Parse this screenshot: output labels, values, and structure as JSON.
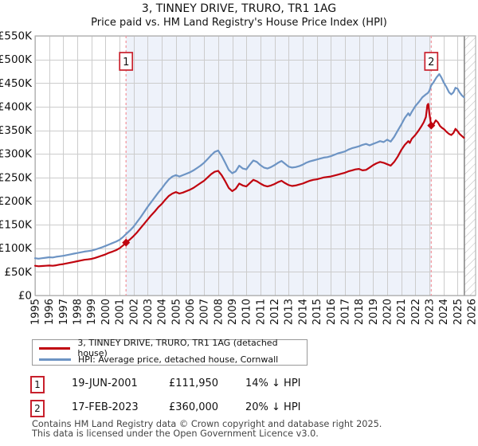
{
  "title": "3, TINNEY DRIVE, TRURO, TR1 1AG",
  "subtitle": "Price paid vs. HM Land Registry's House Price Index (HPI)",
  "colors": {
    "property_line": "#c0040f",
    "hpi_line": "#6d94c4",
    "shading": "#eef2fa",
    "dashed_marker": "#f29aa2",
    "marker_box_border": "#c8202c",
    "marker_point": "#c0040f",
    "grid": "#cccccc",
    "plot_border": "#a6a6a6",
    "hatch_line": "#bfbfbf",
    "hatch_border": "#8a8a8a",
    "footer_text": "#454545"
  },
  "chart_data": {
    "type": "line",
    "title": "3, TINNEY DRIVE, TRURO, TR1 1AG",
    "subtitle": "Price paid vs. HM Land Registry's House Price Index (HPI)",
    "xlabel": "",
    "ylabel": "",
    "grid": true,
    "legend_position": "bottom",
    "values_unit": "GBP thousands",
    "xlim": [
      1995,
      2026.28
    ],
    "ylim": [
      0,
      550
    ],
    "x_ticks": [
      1995,
      1996,
      1997,
      1998,
      1999,
      2000,
      2001,
      2002,
      2003,
      2004,
      2005,
      2006,
      2007,
      2008,
      2009,
      2010,
      2011,
      2012,
      2013,
      2014,
      2015,
      2016,
      2017,
      2018,
      2019,
      2020,
      2021,
      2022,
      2023,
      2024,
      2025,
      2026
    ],
    "x_tick_labels": [
      "1995",
      "1996",
      "1997",
      "1998",
      "1999",
      "2000",
      "2001",
      "2002",
      "2003",
      "2004",
      "2005",
      "2006",
      "2007",
      "2008",
      "2009",
      "2010",
      "2011",
      "2012",
      "2013",
      "2014",
      "2015",
      "2016",
      "2017",
      "2018",
      "2019",
      "2020",
      "2021",
      "2022",
      "2023",
      "2024",
      "2025",
      "2026"
    ],
    "y_ticks": [
      0,
      50,
      100,
      150,
      200,
      250,
      300,
      350,
      400,
      450,
      500,
      550
    ],
    "y_tick_labels": [
      "£0",
      "£50K",
      "£100K",
      "£150K",
      "£200K",
      "£250K",
      "£300K",
      "£350K",
      "£400K",
      "£450K",
      "£500K",
      "£550K"
    ],
    "shaded_span": [
      2001.46,
      2023.13
    ],
    "hatch_span": [
      2025.48,
      2026.28
    ],
    "series": [
      {
        "name": "HPI: Average price, detached house, Cornwall",
        "color": "#6d94c4",
        "points": [
          [
            1995,
            79
          ],
          [
            1995.25,
            78
          ],
          [
            1995.5,
            79
          ],
          [
            1995.75,
            80
          ],
          [
            1996,
            81
          ],
          [
            1996.25,
            80.5
          ],
          [
            1996.5,
            82
          ],
          [
            1996.75,
            83
          ],
          [
            1997,
            84
          ],
          [
            1997.25,
            85.5
          ],
          [
            1997.5,
            87
          ],
          [
            1997.75,
            88.5
          ],
          [
            1998,
            90
          ],
          [
            1998.25,
            91.5
          ],
          [
            1998.5,
            93
          ],
          [
            1998.75,
            94
          ],
          [
            1999,
            95
          ],
          [
            1999.25,
            97
          ],
          [
            1999.5,
            99.5
          ],
          [
            1999.75,
            102
          ],
          [
            2000,
            105
          ],
          [
            2000.25,
            108
          ],
          [
            2000.5,
            111
          ],
          [
            2000.75,
            114
          ],
          [
            2001,
            118
          ],
          [
            2001.25,
            124
          ],
          [
            2001.46,
            130
          ],
          [
            2001.75,
            138
          ],
          [
            2002,
            146
          ],
          [
            2002.25,
            156
          ],
          [
            2002.5,
            166
          ],
          [
            2002.75,
            177
          ],
          [
            2003,
            188
          ],
          [
            2003.25,
            198
          ],
          [
            2003.5,
            208
          ],
          [
            2003.75,
            218
          ],
          [
            2004,
            227
          ],
          [
            2004.25,
            237
          ],
          [
            2004.5,
            246
          ],
          [
            2004.75,
            252
          ],
          [
            2005,
            255
          ],
          [
            2005.25,
            252
          ],
          [
            2005.5,
            255
          ],
          [
            2005.75,
            258
          ],
          [
            2006,
            261
          ],
          [
            2006.25,
            265
          ],
          [
            2006.5,
            270
          ],
          [
            2006.75,
            275
          ],
          [
            2007,
            281
          ],
          [
            2007.25,
            289
          ],
          [
            2007.5,
            297
          ],
          [
            2007.75,
            304
          ],
          [
            2008,
            307
          ],
          [
            2008.25,
            296
          ],
          [
            2008.5,
            281
          ],
          [
            2008.75,
            266
          ],
          [
            2009,
            259
          ],
          [
            2009.25,
            263
          ],
          [
            2009.5,
            275
          ],
          [
            2009.75,
            269
          ],
          [
            2010,
            267
          ],
          [
            2010.25,
            277
          ],
          [
            2010.5,
            286
          ],
          [
            2010.75,
            283
          ],
          [
            2011,
            276
          ],
          [
            2011.25,
            271
          ],
          [
            2011.5,
            269
          ],
          [
            2011.75,
            272
          ],
          [
            2012,
            276
          ],
          [
            2012.25,
            281
          ],
          [
            2012.5,
            285
          ],
          [
            2012.75,
            279
          ],
          [
            2013,
            273
          ],
          [
            2013.25,
            271
          ],
          [
            2013.5,
            272
          ],
          [
            2013.75,
            274
          ],
          [
            2014,
            277
          ],
          [
            2014.25,
            281
          ],
          [
            2014.5,
            284
          ],
          [
            2014.75,
            286
          ],
          [
            2015,
            288
          ],
          [
            2015.25,
            290
          ],
          [
            2015.5,
            292
          ],
          [
            2015.75,
            293
          ],
          [
            2016,
            295
          ],
          [
            2016.25,
            298
          ],
          [
            2016.5,
            301
          ],
          [
            2016.75,
            303
          ],
          [
            2017,
            305
          ],
          [
            2017.25,
            309
          ],
          [
            2017.5,
            312
          ],
          [
            2017.75,
            314
          ],
          [
            2018,
            316
          ],
          [
            2018.25,
            319
          ],
          [
            2018.5,
            321
          ],
          [
            2018.75,
            318
          ],
          [
            2019,
            321
          ],
          [
            2019.25,
            324
          ],
          [
            2019.5,
            327
          ],
          [
            2019.75,
            325
          ],
          [
            2020,
            330
          ],
          [
            2020.25,
            326
          ],
          [
            2020.5,
            336
          ],
          [
            2020.75,
            349
          ],
          [
            2021,
            362
          ],
          [
            2021.25,
            376
          ],
          [
            2021.5,
            386
          ],
          [
            2021.6,
            381
          ],
          [
            2021.75,
            389
          ],
          [
            2022,
            401
          ],
          [
            2022.25,
            410
          ],
          [
            2022.5,
            420
          ],
          [
            2022.75,
            426
          ],
          [
            2022.9,
            429
          ],
          [
            2023,
            434
          ],
          [
            2023.13,
            445
          ],
          [
            2023.3,
            452
          ],
          [
            2023.5,
            462
          ],
          [
            2023.7,
            469
          ],
          [
            2023.85,
            462
          ],
          [
            2024,
            452
          ],
          [
            2024.2,
            442
          ],
          [
            2024.4,
            430
          ],
          [
            2024.55,
            426
          ],
          [
            2024.7,
            430
          ],
          [
            2024.85,
            440
          ],
          [
            2025,
            438
          ],
          [
            2025.15,
            430
          ],
          [
            2025.3,
            424
          ],
          [
            2025.45,
            420
          ]
        ]
      },
      {
        "name": "3, TINNEY DRIVE, TRURO, TR1 1AG (detached house)",
        "color": "#c0040f",
        "points": [
          [
            1995,
            63
          ],
          [
            1995.25,
            62
          ],
          [
            1995.5,
            62.5
          ],
          [
            1995.75,
            63
          ],
          [
            1996,
            63.5
          ],
          [
            1996.25,
            63
          ],
          [
            1996.5,
            64
          ],
          [
            1996.75,
            65.5
          ],
          [
            1997,
            66.5
          ],
          [
            1997.25,
            68
          ],
          [
            1997.5,
            69.5
          ],
          [
            1997.75,
            71
          ],
          [
            1998,
            72.5
          ],
          [
            1998.25,
            74
          ],
          [
            1998.5,
            75.5
          ],
          [
            1998.75,
            76.5
          ],
          [
            1999,
            77.5
          ],
          [
            1999.25,
            79.5
          ],
          [
            1999.5,
            82
          ],
          [
            1999.75,
            84.5
          ],
          [
            2000,
            87
          ],
          [
            2000.25,
            90.5
          ],
          [
            2000.5,
            93
          ],
          [
            2000.75,
            96
          ],
          [
            2001,
            100
          ],
          [
            2001.25,
            106
          ],
          [
            2001.46,
            112
          ],
          [
            2001.75,
            119
          ],
          [
            2002,
            126
          ],
          [
            2002.25,
            134
          ],
          [
            2002.5,
            143
          ],
          [
            2002.75,
            152
          ],
          [
            2003,
            161
          ],
          [
            2003.25,
            170
          ],
          [
            2003.5,
            178
          ],
          [
            2003.75,
            187
          ],
          [
            2004,
            194
          ],
          [
            2004.25,
            203
          ],
          [
            2004.5,
            211
          ],
          [
            2004.75,
            216
          ],
          [
            2005,
            219
          ],
          [
            2005.25,
            216
          ],
          [
            2005.5,
            218
          ],
          [
            2005.75,
            221
          ],
          [
            2006,
            224
          ],
          [
            2006.25,
            228
          ],
          [
            2006.5,
            233
          ],
          [
            2006.75,
            238
          ],
          [
            2007,
            243
          ],
          [
            2007.25,
            250
          ],
          [
            2007.5,
            257
          ],
          [
            2007.75,
            262
          ],
          [
            2008,
            264
          ],
          [
            2008.25,
            255
          ],
          [
            2008.5,
            242
          ],
          [
            2008.75,
            228
          ],
          [
            2009,
            221
          ],
          [
            2009.25,
            226
          ],
          [
            2009.5,
            237
          ],
          [
            2009.75,
            233
          ],
          [
            2010,
            231
          ],
          [
            2010.25,
            238
          ],
          [
            2010.5,
            245
          ],
          [
            2010.75,
            242
          ],
          [
            2011,
            237
          ],
          [
            2011.25,
            233
          ],
          [
            2011.5,
            231
          ],
          [
            2011.75,
            233
          ],
          [
            2012,
            236
          ],
          [
            2012.25,
            240
          ],
          [
            2012.5,
            243
          ],
          [
            2012.75,
            238
          ],
          [
            2013,
            234
          ],
          [
            2013.25,
            232
          ],
          [
            2013.5,
            233
          ],
          [
            2013.75,
            235
          ],
          [
            2014,
            237
          ],
          [
            2014.25,
            240
          ],
          [
            2014.5,
            243
          ],
          [
            2014.75,
            245
          ],
          [
            2015,
            246
          ],
          [
            2015.25,
            248
          ],
          [
            2015.5,
            250
          ],
          [
            2015.75,
            251
          ],
          [
            2016,
            252
          ],
          [
            2016.25,
            254
          ],
          [
            2016.5,
            256
          ],
          [
            2016.75,
            258
          ],
          [
            2017,
            260
          ],
          [
            2017.25,
            263
          ],
          [
            2017.5,
            265
          ],
          [
            2017.75,
            267
          ],
          [
            2018,
            268
          ],
          [
            2018.25,
            265
          ],
          [
            2018.5,
            266
          ],
          [
            2018.75,
            271
          ],
          [
            2019,
            276
          ],
          [
            2019.25,
            280
          ],
          [
            2019.5,
            283
          ],
          [
            2019.75,
            281
          ],
          [
            2020,
            278
          ],
          [
            2020.25,
            275
          ],
          [
            2020.5,
            283
          ],
          [
            2020.75,
            294
          ],
          [
            2021,
            308
          ],
          [
            2021.25,
            319
          ],
          [
            2021.5,
            327
          ],
          [
            2021.6,
            323
          ],
          [
            2021.75,
            332
          ],
          [
            2022,
            340
          ],
          [
            2022.2,
            348
          ],
          [
            2022.4,
            357
          ],
          [
            2022.6,
            367
          ],
          [
            2022.75,
            378
          ],
          [
            2022.85,
            403
          ],
          [
            2022.92,
            406
          ],
          [
            2023,
            385
          ],
          [
            2023.13,
            360
          ],
          [
            2023.3,
            363
          ],
          [
            2023.45,
            371
          ],
          [
            2023.6,
            367
          ],
          [
            2023.75,
            359
          ],
          [
            2023.9,
            355
          ],
          [
            2024.05,
            352
          ],
          [
            2024.2,
            347
          ],
          [
            2024.4,
            342
          ],
          [
            2024.55,
            340
          ],
          [
            2024.7,
            344
          ],
          [
            2024.85,
            353
          ],
          [
            2025,
            348
          ],
          [
            2025.15,
            342
          ],
          [
            2025.3,
            338
          ],
          [
            2025.45,
            334
          ]
        ]
      }
    ],
    "sale_markers": [
      {
        "label": "1",
        "x": 2001.46,
        "value_thousands": 111.95
      },
      {
        "label": "2",
        "x": 2023.13,
        "value_thousands": 360
      }
    ]
  },
  "legend": {
    "items": [
      {
        "label": "3, TINNEY DRIVE, TRURO, TR1 1AG (detached house)",
        "color": "#c0040f"
      },
      {
        "label": "HPI: Average price, detached house, Cornwall",
        "color": "#6d94c4"
      }
    ]
  },
  "transactions": [
    {
      "num": "1",
      "date": "19-JUN-2001",
      "price": "£111,950",
      "vs_hpi": "14% ↓ HPI"
    },
    {
      "num": "2",
      "date": "17-FEB-2023",
      "price": "£360,000",
      "vs_hpi": "20% ↓ HPI"
    }
  ],
  "footer": {
    "line1": "Contains HM Land Registry data © Crown copyright and database right 2025.",
    "line2": "This data is licensed under the Open Government Licence v3.0."
  }
}
